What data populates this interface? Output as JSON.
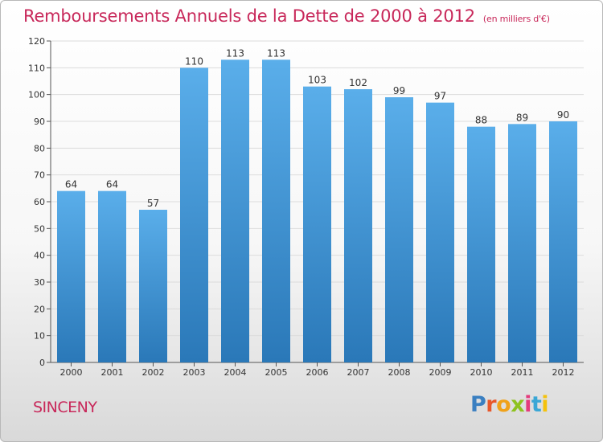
{
  "title": "Remboursements Annuels de la Dette de 2000 à 2012",
  "subtitle": "(en milliers d'€)",
  "town": "SINCENY",
  "logo": {
    "text": "Proxiti",
    "colors": [
      "#3a7fc1",
      "#e8572a",
      "#f0a21a",
      "#8ec21f",
      "#e43b7c",
      "#3aa7d6",
      "#f4c20d"
    ]
  },
  "colors": {
    "bar": "#4a9fe0",
    "bar_dark": "#2e7fc0",
    "title": "#c8285a"
  },
  "chart_data": {
    "type": "bar",
    "categories": [
      "2000",
      "2001",
      "2002",
      "2003",
      "2004",
      "2005",
      "2006",
      "2007",
      "2008",
      "2009",
      "2010",
      "2011",
      "2012"
    ],
    "values": [
      64,
      64,
      57,
      110,
      113,
      113,
      103,
      102,
      99,
      97,
      88,
      89,
      90
    ],
    "ylim": [
      0,
      120
    ],
    "yticks": [
      0,
      10,
      20,
      30,
      40,
      50,
      60,
      70,
      80,
      90,
      100,
      110,
      120
    ],
    "grid": true
  }
}
